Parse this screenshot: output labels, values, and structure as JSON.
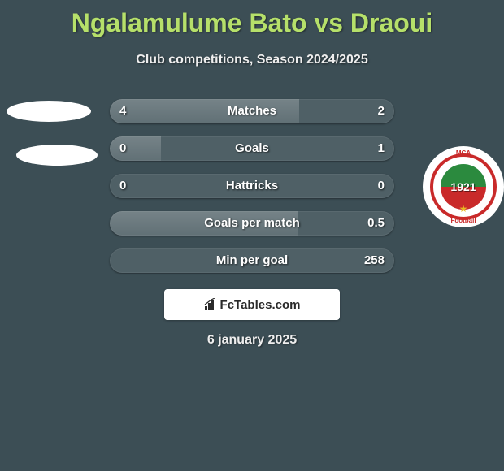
{
  "title": "Ngalamulume Bato vs Draoui",
  "title_color": "#b6e06a",
  "subtitle": "Club competitions, Season 2024/2025",
  "subtitle_color": "#eeeeee",
  "background_color": "#3c4e55",
  "date": "6 january 2025",
  "date_color": "#eeeeee",
  "branding": {
    "text": "FcTables.com",
    "icon_name": "bar-chart-icon"
  },
  "badge_right": {
    "abbrev": "MCA",
    "sub": "Football",
    "year": "1921",
    "ring_color": "#c92a2a",
    "top_color": "#2b8a3e",
    "bottom_color": "#c92a2a",
    "star_color": "#e8b923"
  },
  "rows": [
    {
      "label": "Matches",
      "left": "4",
      "right": "2",
      "left_pct": 66.7,
      "right_pct": 0
    },
    {
      "label": "Goals",
      "left": "0",
      "right": "1",
      "left_pct": 18.0,
      "right_pct": 0
    },
    {
      "label": "Hattricks",
      "left": "0",
      "right": "0",
      "left_pct": 0,
      "right_pct": 0
    },
    {
      "label": "Goals per match",
      "left": "",
      "right": "0.5",
      "left_pct": 66.0,
      "right_pct": 0
    },
    {
      "label": "Min per goal",
      "left": "",
      "right": "258",
      "left_pct": 0,
      "right_pct": 0
    }
  ],
  "row_track_color": "rgba(255,255,255,0.10)",
  "row_fill_color": "rgba(255,255,255,0.18)",
  "text_color": "#ffffff"
}
